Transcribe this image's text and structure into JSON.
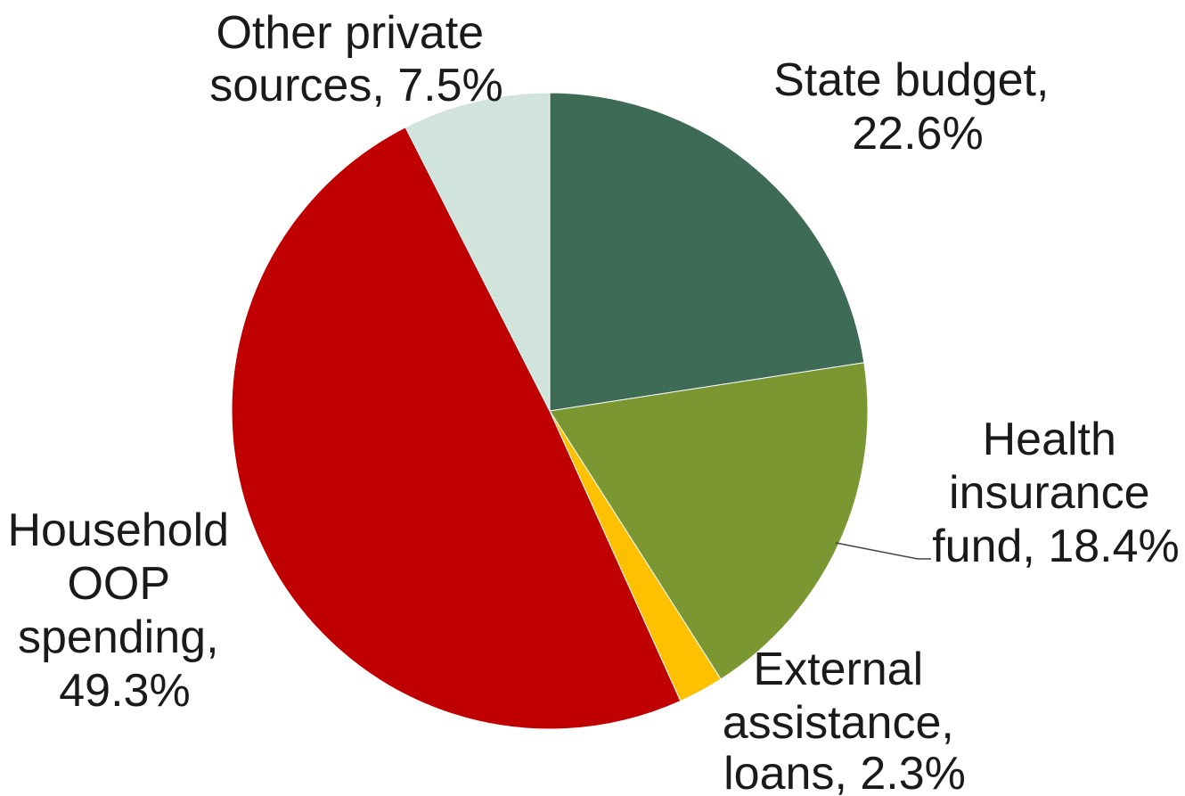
{
  "chart_data": {
    "type": "pie",
    "title": "",
    "start_angle_deg": 0,
    "direction": "clockwise",
    "slices": [
      {
        "label": "State budget",
        "value": 22.6,
        "display": "22.6%",
        "color": "#3d6b55"
      },
      {
        "label": "Health insurance fund",
        "value": 18.4,
        "display": "18.4%",
        "color": "#7a9731"
      },
      {
        "label": "External assistance, loans",
        "value": 2.3,
        "display": "2.3%",
        "color": "#ffc000"
      },
      {
        "label": "Household OOP spending",
        "value": 49.3,
        "display": "49.3%",
        "color": "#c00000"
      },
      {
        "label": "Other private sources",
        "value": 7.5,
        "display": "7.5%",
        "color": "#d0e4dc"
      }
    ],
    "data_labels": [
      {
        "lines": [
          "Other private",
          "sources, 7.5%"
        ]
      },
      {
        "lines": [
          "State budget,",
          "22.6%"
        ]
      },
      {
        "lines": [
          "Health",
          "insurance",
          "fund, 18.4%"
        ]
      },
      {
        "lines": [
          "Household",
          "OOP",
          "spending,",
          "49.3%"
        ]
      },
      {
        "lines": [
          "External",
          "assistance,",
          "loans, 2.3%"
        ]
      }
    ],
    "leader_lines": [
      "Health insurance fund"
    ]
  }
}
